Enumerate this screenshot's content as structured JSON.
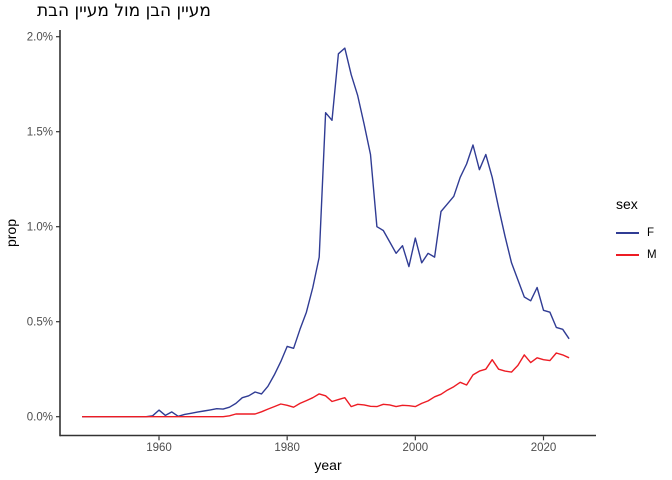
{
  "chart_data": {
    "type": "line",
    "title": "מעיין הבן מול מעיין הבת",
    "xlabel": "year",
    "ylabel": "prop",
    "x_ticks": [
      1960,
      1980,
      2000,
      2020
    ],
    "y_ticks": [
      {
        "value": 0.0,
        "label": "0.0%"
      },
      {
        "value": 0.5,
        "label": "0.5%"
      },
      {
        "value": 1.0,
        "label": "1.0%"
      },
      {
        "value": 1.5,
        "label": "1.5%"
      },
      {
        "value": 2.0,
        "label": "2.0%"
      }
    ],
    "xlim": [
      1948,
      2024
    ],
    "ylim": [
      0,
      2.0
    ],
    "grid": false,
    "background": "#ffffff",
    "axis_color": "#333333",
    "tick_label_color": "#4d4d4d",
    "legend": {
      "title": "sex",
      "position": "right",
      "entries": [
        {
          "label": "F",
          "color": "#303c94"
        },
        {
          "label": "M",
          "color": "#ed1c24"
        }
      ]
    },
    "x": [
      1948,
      1949,
      1950,
      1951,
      1952,
      1953,
      1954,
      1955,
      1956,
      1957,
      1958,
      1959,
      1960,
      1961,
      1962,
      1963,
      1964,
      1965,
      1966,
      1967,
      1968,
      1969,
      1970,
      1971,
      1972,
      1973,
      1974,
      1975,
      1976,
      1977,
      1978,
      1979,
      1980,
      1981,
      1982,
      1983,
      1984,
      1985,
      1986,
      1987,
      1988,
      1989,
      1990,
      1991,
      1992,
      1993,
      1994,
      1995,
      1996,
      1997,
      1998,
      1999,
      2000,
      2001,
      2002,
      2003,
      2004,
      2005,
      2006,
      2007,
      2008,
      2009,
      2010,
      2011,
      2012,
      2013,
      2014,
      2015,
      2016,
      2017,
      2018,
      2019,
      2020,
      2021,
      2022,
      2023,
      2024
    ],
    "series": [
      {
        "name": "F",
        "color": "#303c94",
        "values": [
          0,
          0,
          0,
          0,
          0,
          0,
          0,
          0,
          0,
          0,
          0,
          0.005,
          0.035,
          0.007,
          0.025,
          0.002,
          0.012,
          0.018,
          0.024,
          0.03,
          0.036,
          0.042,
          0.04,
          0.05,
          0.07,
          0.1,
          0.11,
          0.13,
          0.12,
          0.16,
          0.22,
          0.29,
          0.37,
          0.36,
          0.46,
          0.55,
          0.68,
          0.84,
          1.6,
          1.56,
          1.91,
          1.94,
          1.8,
          1.69,
          1.54,
          1.38,
          1.0,
          0.98,
          0.92,
          0.86,
          0.9,
          0.79,
          0.94,
          0.81,
          0.86,
          0.84,
          1.08,
          1.12,
          1.16,
          1.26,
          1.33,
          1.43,
          1.3,
          1.38,
          1.26,
          1.1,
          0.95,
          0.81,
          0.72,
          0.63,
          0.61,
          0.68,
          0.56,
          0.55,
          0.47,
          0.46,
          0.41
        ]
      },
      {
        "name": "M",
        "color": "#ed1c24",
        "values": [
          0,
          0,
          0,
          0,
          0,
          0,
          0,
          0,
          0,
          0,
          0,
          0,
          0,
          0,
          0,
          0,
          0,
          0,
          0,
          0,
          0,
          0,
          0,
          0.005,
          0.014,
          0.014,
          0.014,
          0.014,
          0.026,
          0.04,
          0.053,
          0.067,
          0.06,
          0.05,
          0.07,
          0.085,
          0.1,
          0.12,
          0.11,
          0.08,
          0.09,
          0.1,
          0.053,
          0.065,
          0.062,
          0.055,
          0.053,
          0.065,
          0.062,
          0.053,
          0.06,
          0.058,
          0.053,
          0.07,
          0.083,
          0.105,
          0.118,
          0.14,
          0.158,
          0.181,
          0.167,
          0.22,
          0.24,
          0.25,
          0.3,
          0.25,
          0.24,
          0.235,
          0.27,
          0.325,
          0.285,
          0.31,
          0.3,
          0.295,
          0.335,
          0.325,
          0.31
        ]
      }
    ]
  }
}
